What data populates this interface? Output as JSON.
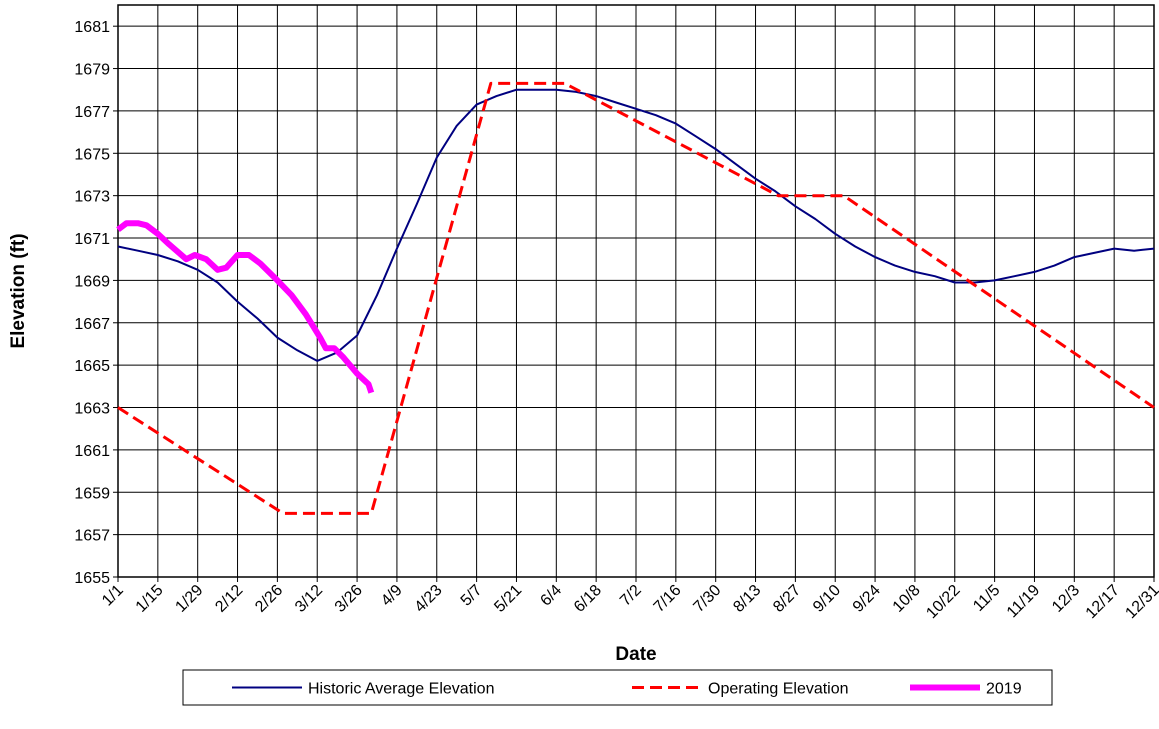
{
  "chart_data": {
    "type": "line",
    "xlabel": "Date",
    "ylabel": "Elevation (ft)",
    "xlim": [
      "1/1",
      "12/31"
    ],
    "xticks": [
      "1/1",
      "1/15",
      "1/29",
      "2/12",
      "2/26",
      "3/12",
      "3/26",
      "4/9",
      "4/23",
      "5/7",
      "5/21",
      "6/4",
      "6/18",
      "7/2",
      "7/16",
      "7/30",
      "8/13",
      "8/27",
      "9/10",
      "9/24",
      "10/8",
      "10/22",
      "11/5",
      "11/19",
      "12/3",
      "12/17",
      "12/31"
    ],
    "ylim": [
      1655,
      1682
    ],
    "yticks": [
      1655,
      1657,
      1659,
      1661,
      1663,
      1665,
      1667,
      1669,
      1671,
      1673,
      1675,
      1677,
      1679,
      1681
    ],
    "grid": true,
    "legend": "bottom",
    "series": [
      {
        "name": "Historic Average Elevation",
        "color": "#000080",
        "dash": "solid",
        "width": 2,
        "x": [
          "1/1",
          "1/8",
          "1/15",
          "1/22",
          "1/29",
          "2/5",
          "2/12",
          "2/19",
          "2/26",
          "3/5",
          "3/12",
          "3/19",
          "3/26",
          "4/2",
          "4/9",
          "4/16",
          "4/23",
          "4/30",
          "5/7",
          "5/14",
          "5/21",
          "5/28",
          "6/4",
          "6/11",
          "6/18",
          "6/25",
          "7/2",
          "7/9",
          "7/16",
          "7/23",
          "7/30",
          "8/6",
          "8/13",
          "8/20",
          "8/27",
          "9/3",
          "9/10",
          "9/17",
          "9/24",
          "10/1",
          "10/8",
          "10/15",
          "10/22",
          "10/29",
          "11/5",
          "11/12",
          "11/19",
          "11/26",
          "12/3",
          "12/10",
          "12/17",
          "12/24",
          "12/31"
        ],
        "values": [
          1670.6,
          1670.4,
          1670.2,
          1669.9,
          1669.5,
          1668.9,
          1668.0,
          1667.2,
          1666.3,
          1665.7,
          1665.2,
          1665.6,
          1666.4,
          1668.3,
          1670.5,
          1672.6,
          1674.8,
          1676.3,
          1677.3,
          1677.7,
          1678.0,
          1678.0,
          1678.0,
          1677.9,
          1677.7,
          1677.4,
          1677.1,
          1676.8,
          1676.4,
          1675.8,
          1675.2,
          1674.5,
          1673.8,
          1673.2,
          1672.5,
          1671.9,
          1671.2,
          1670.6,
          1670.1,
          1669.7,
          1669.4,
          1669.2,
          1668.9,
          1668.9,
          1669.0,
          1669.2,
          1669.4,
          1669.7,
          1670.1,
          1670.3,
          1670.5,
          1670.4,
          1670.5
        ]
      },
      {
        "name": "Operating Elevation",
        "color": "#ff0000",
        "dash": "dashed",
        "width": 3,
        "x": [
          "1/1",
          "2/28",
          "3/31",
          "5/12",
          "6/7",
          "8/21",
          "9/13",
          "12/31"
        ],
        "values": [
          1663,
          1658,
          1658,
          1678.3,
          1678.3,
          1673,
          1673,
          1663
        ]
      },
      {
        "name": "2019",
        "color": "#ff00ff",
        "dash": "solid",
        "width": 6,
        "x": [
          "1/1",
          "1/4",
          "1/8",
          "1/11",
          "1/15",
          "1/19",
          "1/25",
          "1/28",
          "2/1",
          "2/5",
          "2/8",
          "2/12",
          "2/16",
          "2/20",
          "2/26",
          "3/3",
          "3/8",
          "3/13",
          "3/15",
          "3/18",
          "3/21",
          "3/26",
          "3/30",
          "3/31"
        ],
        "values": [
          1671.4,
          1671.7,
          1671.7,
          1671.6,
          1671.2,
          1670.7,
          1670.0,
          1670.2,
          1670.0,
          1669.5,
          1669.6,
          1670.2,
          1670.2,
          1669.8,
          1669.0,
          1668.3,
          1667.4,
          1666.3,
          1665.8,
          1665.8,
          1665.4,
          1664.6,
          1664.1,
          1663.7
        ]
      }
    ]
  }
}
